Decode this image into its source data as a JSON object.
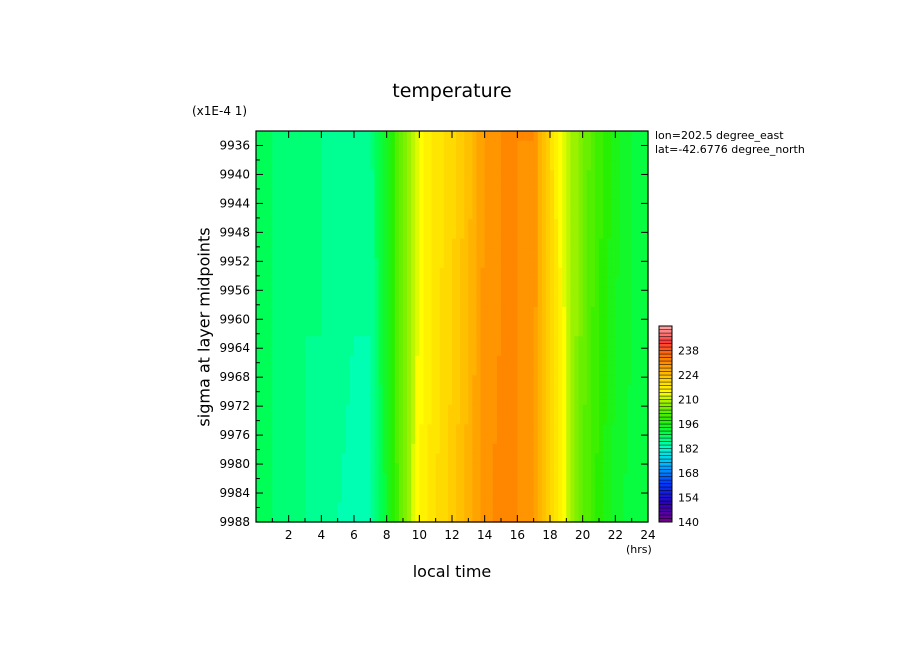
{
  "chart_data": {
    "type": "heatmap",
    "title": "temperature",
    "scale_note": "(x1E-4 1)",
    "xlabel": "local time",
    "x_unit": "(hrs)",
    "ylabel": "sigma at layer midpoints",
    "info": {
      "lon": "lon=202.5 degree_east",
      "lat": "lat=-42.6776 degree_north"
    },
    "xlim": [
      0,
      24
    ],
    "ylim": [
      9934,
      9988
    ],
    "y_inverted": true,
    "x_ticks": [
      "2",
      "4",
      "6",
      "8",
      "10",
      "12",
      "14",
      "16",
      "18",
      "20",
      "22",
      "24"
    ],
    "y_ticks": [
      "9936",
      "9940",
      "9944",
      "9948",
      "9952",
      "9956",
      "9960",
      "9964",
      "9968",
      "9972",
      "9976",
      "9980",
      "9984",
      "9988"
    ],
    "colorbar": {
      "min": 140,
      "max": 252,
      "step": 2,
      "tick_labels": [
        "140",
        "154",
        "168",
        "182",
        "196",
        "210",
        "224",
        "238"
      ]
    },
    "rows": [
      {
        "y": 9936,
        "values": [
          190,
          189,
          188,
          188,
          187,
          186,
          186,
          186,
          195,
          205,
          214,
          218,
          220,
          224,
          229,
          231,
          231,
          231,
          220,
          211,
          205,
          200,
          196,
          193,
          192
        ]
      },
      {
        "y": 9962,
        "values": [
          190,
          189,
          188,
          187,
          187,
          186,
          185,
          185,
          195,
          205,
          214,
          218,
          221,
          225,
          230,
          231,
          231,
          230,
          221,
          212,
          204,
          199,
          195,
          193,
          192
        ]
      },
      {
        "y": 9988,
        "values": [
          190,
          189,
          188,
          187,
          186,
          185,
          184,
          184,
          194,
          205,
          215,
          219,
          222,
          226,
          230,
          232,
          231,
          230,
          222,
          212,
          203,
          198,
          194,
          192,
          191
        ]
      }
    ],
    "x": [
      0,
      1,
      2,
      3,
      4,
      5,
      6,
      7,
      8,
      9,
      10,
      11,
      12,
      13,
      14,
      15,
      16,
      17,
      18,
      19,
      20,
      21,
      22,
      23,
      24
    ]
  }
}
